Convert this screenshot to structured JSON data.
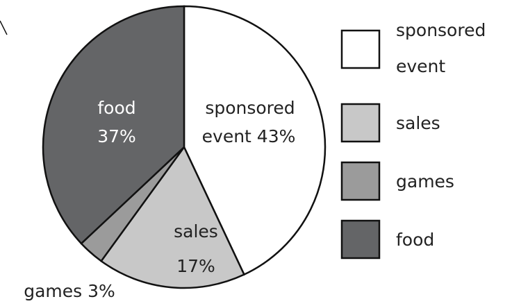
{
  "chart_data": {
    "type": "pie",
    "slices": [
      {
        "key": "sponsored",
        "legend": [
          "sponsored",
          "event"
        ],
        "label": [
          "sponsored",
          "event 43%"
        ],
        "value": 43,
        "color": "#ffffff",
        "text_color": "#222222"
      },
      {
        "key": "sales",
        "legend": [
          "sales"
        ],
        "label": [
          "sales",
          "17%"
        ],
        "value": 17,
        "color": "#c8c8c8",
        "text_color": "#222222"
      },
      {
        "key": "games",
        "legend": [
          "games"
        ],
        "label": [
          "games 3%"
        ],
        "value": 3,
        "color": "#9b9b9b",
        "text_color": "#222222"
      },
      {
        "key": "food",
        "legend": [
          "food"
        ],
        "label": [
          "food",
          "37%"
        ],
        "value": 37,
        "color": "#646567",
        "text_color": "#ffffff"
      }
    ],
    "start_angle_deg": 0,
    "direction": "clockwise",
    "legend_position": "right"
  }
}
